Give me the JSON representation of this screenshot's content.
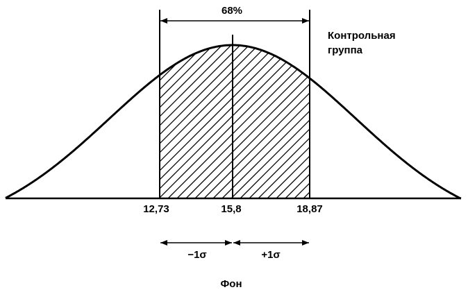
{
  "top_label": "68%",
  "group_label": [
    "Контрольная",
    "группа"
  ],
  "axis_labels": [
    "12,73",
    "15,8",
    "18,87"
  ],
  "sigma_labels": [
    "−1σ",
    "+1σ"
  ],
  "caption": "Фон"
}
